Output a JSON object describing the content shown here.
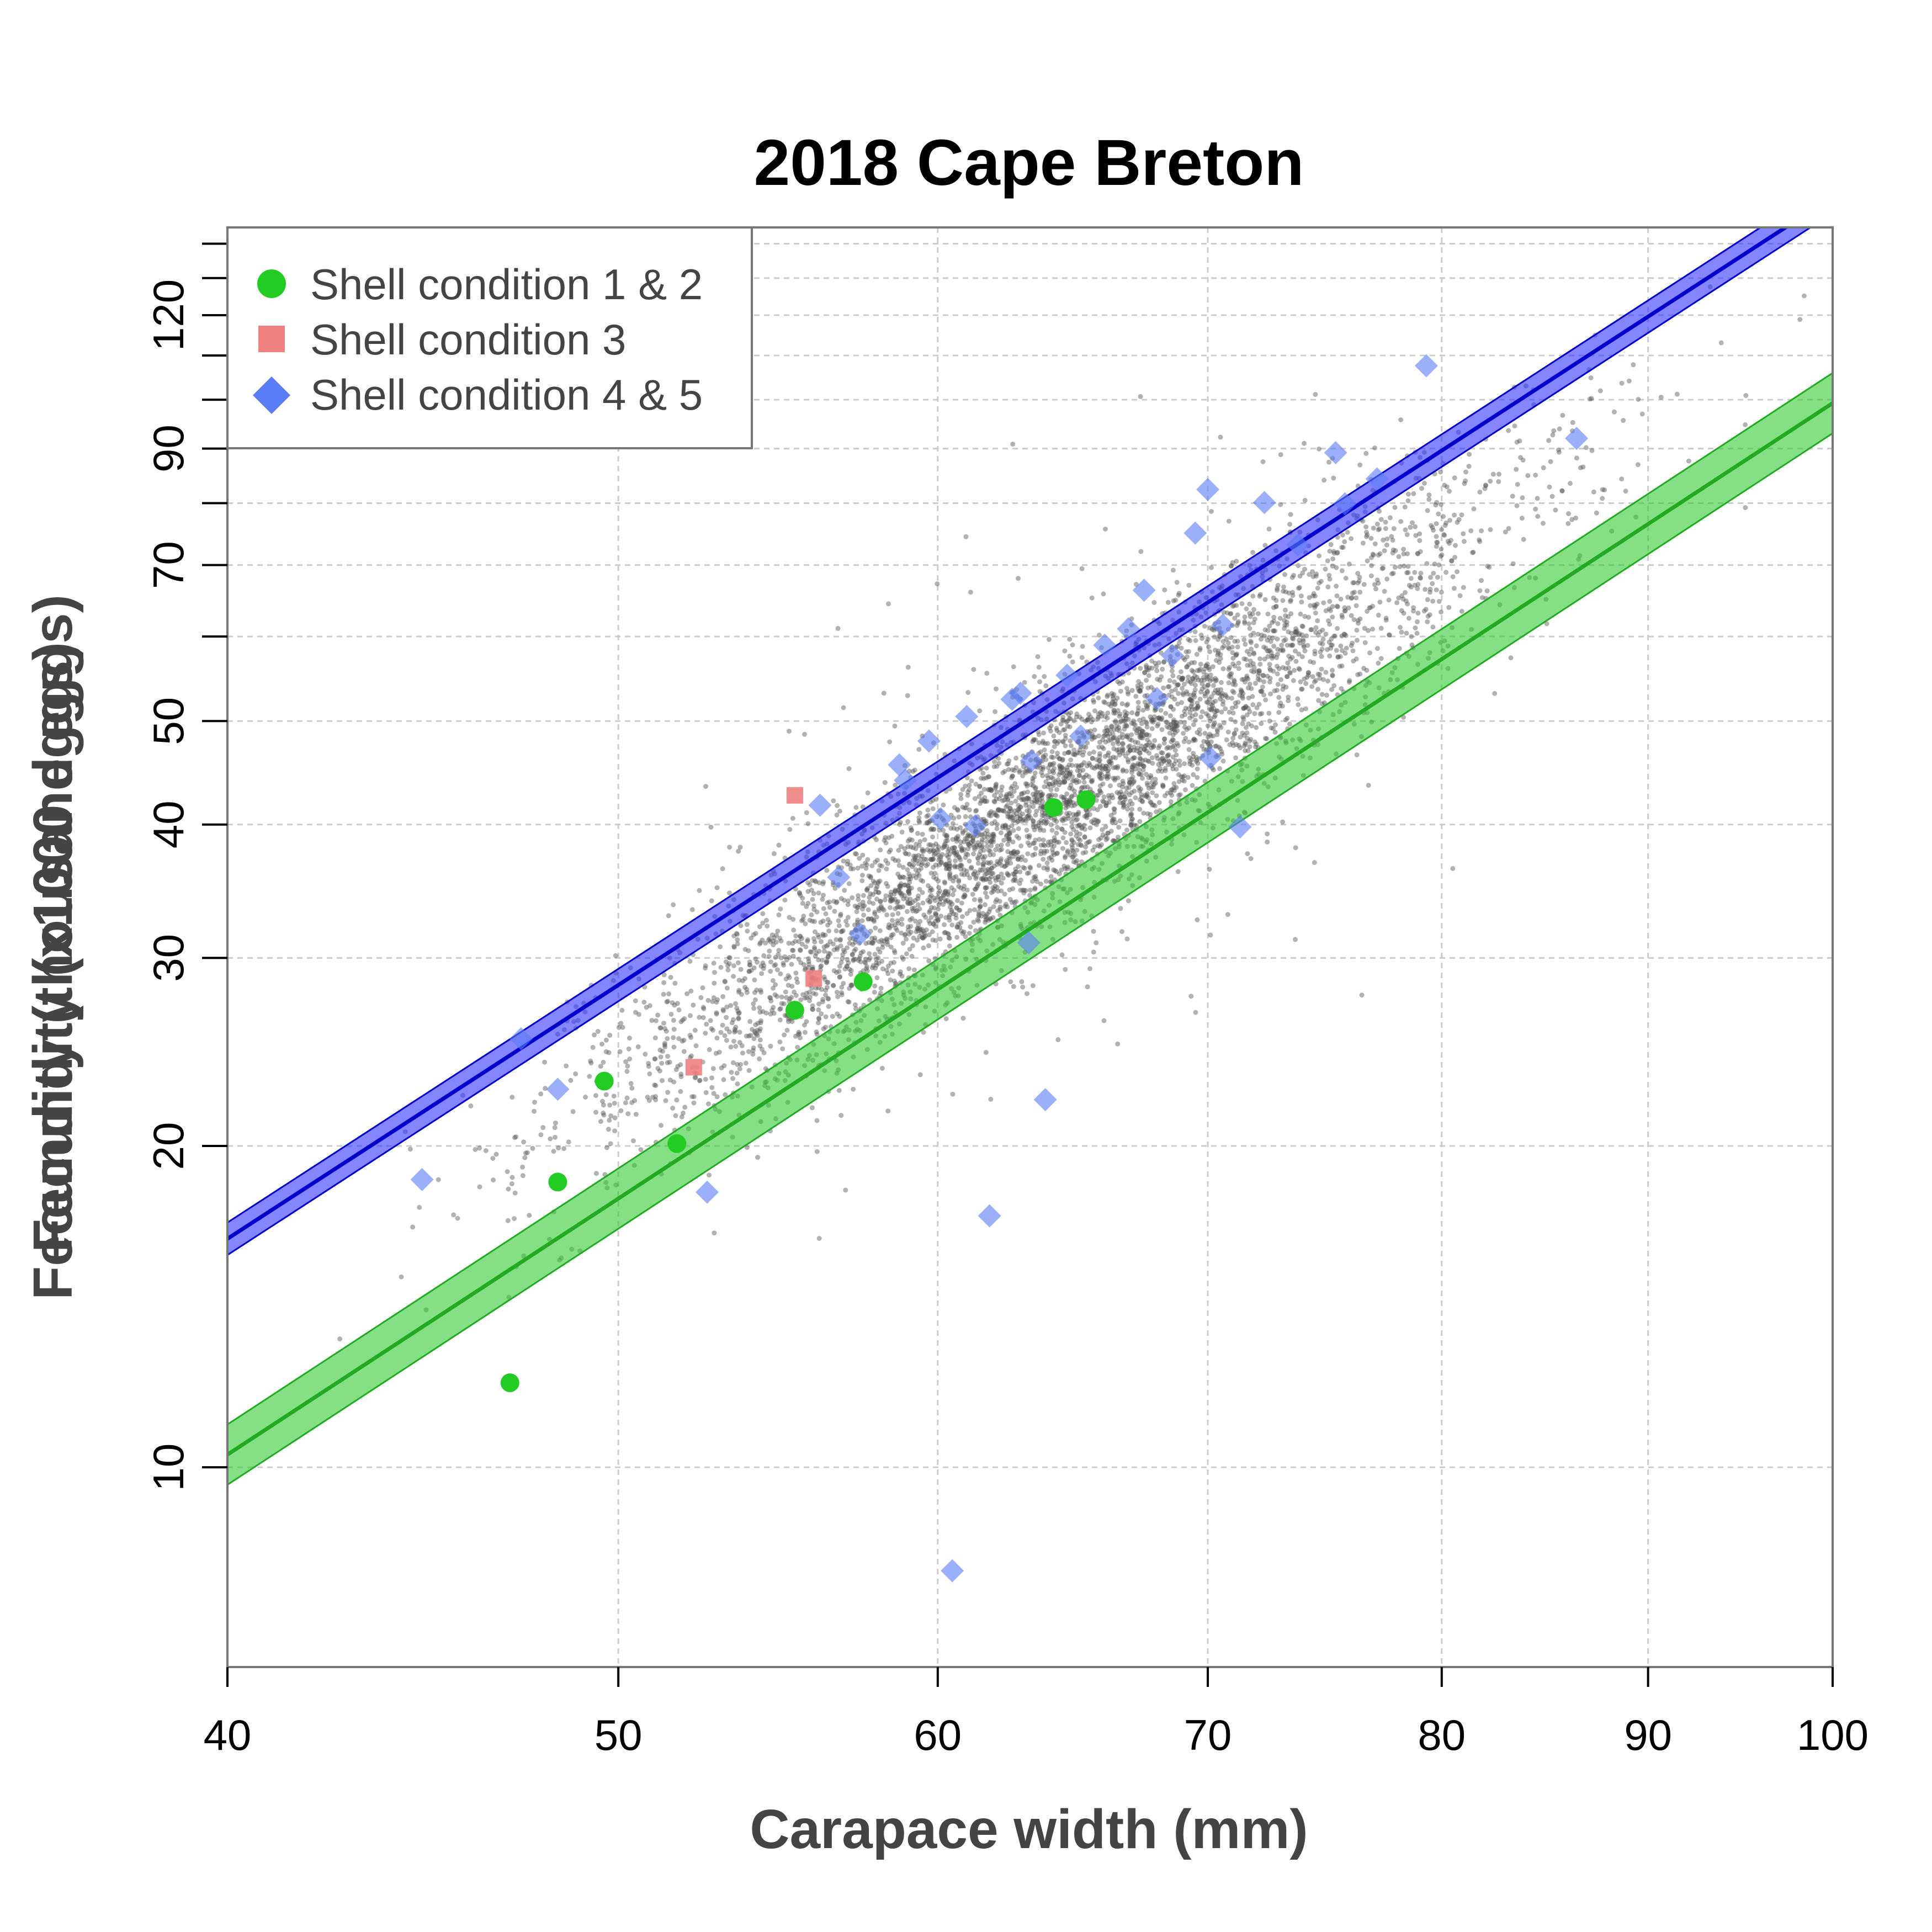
{
  "chart_data": {
    "type": "scatter",
    "title": "2018 Cape Breton",
    "xlabel": "Carapace width (mm)",
    "ylabel": "Fecundity (x1000 eggs)",
    "ylabel_overlay": "Fecundity (thousand eggs)",
    "x_scale": "log",
    "y_scale": "log",
    "xlim": [
      40,
      100
    ],
    "ylim": [
      6.5,
      145
    ],
    "x_ticks": [
      40,
      50,
      60,
      70,
      80,
      90,
      100
    ],
    "y_ticks": [
      10,
      20,
      30,
      40,
      50,
      70,
      90,
      120
    ],
    "y_minor_ticks": [
      60,
      80,
      100,
      110,
      130,
      140
    ],
    "grid": true,
    "legend_position": "top-left",
    "legend": [
      {
        "label": "Shell condition 1 & 2",
        "marker": "circle",
        "color": "#22cc22"
      },
      {
        "label": "Shell condition 3",
        "marker": "square",
        "color": "#f08080"
      },
      {
        "label": "Shell condition 4 & 5",
        "marker": "diamond",
        "color": "#5a7cf5"
      }
    ],
    "series": [
      {
        "name": "Shell condition 1 & 2",
        "color": "#22cc22",
        "x": [
          47.0,
          48.3,
          49.6,
          51.7,
          55.3,
          57.5,
          64.1,
          65.3
        ],
        "y": [
          12.0,
          18.5,
          23.0,
          20.1,
          26.8,
          28.5,
          41.5,
          42.2
        ]
      },
      {
        "name": "Shell condition 3",
        "color": "#f08080",
        "x": [
          52.2,
          55.3,
          55.9
        ],
        "y": [
          23.7,
          42.6,
          28.7
        ]
      },
      {
        "name": "Shell condition 4 & 5",
        "color": "#5a7cf5",
        "x": [
          44.7,
          47.3,
          48.3,
          52.6,
          56.1,
          56.7,
          57.4,
          58.7,
          59.7,
          60.5,
          61.0,
          61.8,
          62.6,
          63.2,
          63.3,
          63.8,
          64.6,
          66.0,
          67.5,
          68.6,
          69.5,
          70.0,
          70.6,
          71.3,
          72.3,
          73.7,
          75.3,
          75.7,
          77.1,
          79.3,
          86.4,
          60.1,
          61.3,
          65.1,
          66.9,
          70.1,
          68.0,
          62.9,
          58.9
        ],
        "y": [
          18.6,
          25.2,
          22.6,
          18.1,
          41.7,
          35.7,
          31.6,
          45.5,
          47.9,
          8.0,
          50.5,
          17.2,
          52.4,
          31.0,
          45.9,
          22.1,
          55.2,
          58.9,
          66.3,
          57.6,
          75.0,
          82.4,
          61.5,
          39.8,
          80.1,
          73.1,
          89.2,
          79.9,
          84.3,
          107.6,
          92.0,
          40.5,
          39.9,
          48.4,
          61.0,
          46.2,
          52.5,
          53.1,
          44.0
        ]
      }
    ],
    "fits": [
      {
        "name": "Shell condition 1 & 2",
        "color": "#22aa22",
        "band_color": "#33cc33",
        "a": -6.8,
        "b": 2.475,
        "band_halfwidth_log": 0.065
      },
      {
        "name": "Shell condition 4 & 5",
        "color": "#0000cc",
        "band_color": "#3333ff",
        "a": -6.2515,
        "b": 2.4525,
        "band_halfwidth_log": 0.035
      }
    ],
    "background_points": {
      "count": 5000,
      "color": "#555555",
      "seed": 20181
    }
  }
}
